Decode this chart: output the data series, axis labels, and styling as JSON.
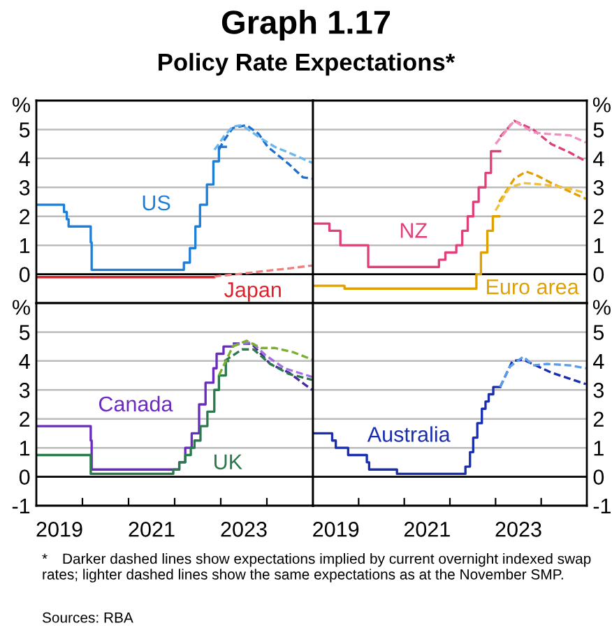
{
  "chart_data": [
    {
      "type": "line",
      "title": "Graph 1.17",
      "subtitle": "Policy Rate Expectations*",
      "ylabel": "%",
      "xlim": [
        2019,
        2025
      ],
      "ylim": [
        -1,
        6
      ],
      "yticks": [
        0,
        1,
        2,
        3,
        4,
        5
      ],
      "grid": "y",
      "tick_labels": "y",
      "ref_lines": [
        {
          "axis": "y",
          "value": 0,
          "color": "#000000"
        }
      ],
      "series": [
        {
          "name": "US",
          "type": "step",
          "color": "#1f7fd6",
          "line_style": "solid",
          "x": [
            2019.0,
            2019.6,
            2019.66,
            2019.7,
            2020.18,
            2020.2,
            2022.2,
            2022.33,
            2022.45,
            2022.55,
            2022.7,
            2022.84,
            2022.96,
            2023.11
          ],
          "values": [
            2.4,
            2.15,
            1.9,
            1.65,
            1.1,
            0.15,
            0.4,
            0.9,
            1.65,
            2.4,
            3.1,
            3.9,
            4.4,
            4.4
          ]
        },
        {
          "type": "line",
          "color": "#1f6fcf",
          "line_style": "dashed",
          "x": [
            2022.96,
            2023.06,
            2023.26,
            2023.56,
            2023.82,
            2024.02,
            2024.48,
            2024.78,
            2024.98
          ],
          "values": [
            4.3,
            4.6,
            5.05,
            5.15,
            4.85,
            4.4,
            3.8,
            3.35,
            3.3
          ]
        },
        {
          "type": "line",
          "color": "#6ab8ee",
          "line_style": "dashed",
          "x": [
            2022.86,
            2022.96,
            2023.06,
            2023.26,
            2023.46,
            2023.82,
            2024.17,
            2024.48,
            2024.98
          ],
          "values": [
            4.3,
            4.5,
            4.75,
            5.1,
            5.15,
            4.75,
            4.4,
            4.2,
            3.85
          ]
        },
        {
          "name": "Japan",
          "type": "step",
          "color": "#e0202a",
          "line_style": "solid",
          "x": [
            2019.0,
            2022.86
          ],
          "values": [
            -0.1,
            -0.1
          ]
        },
        {
          "type": "line",
          "color": "#f08080",
          "line_style": "dashed",
          "x": [
            2022.86,
            2023.36,
            2023.9,
            2024.48,
            2024.98
          ],
          "values": [
            -0.08,
            0.0,
            0.1,
            0.2,
            0.3
          ]
        }
      ]
    },
    {
      "type": "line",
      "ylabel": "%",
      "xlim": [
        2019,
        2025
      ],
      "ylim": [
        -1,
        6
      ],
      "yticks": [
        0,
        1,
        2,
        3,
        4,
        5
      ],
      "grid": "y",
      "tick_labels": "y",
      "ref_lines": [
        {
          "axis": "y",
          "value": 0,
          "color": "#000000"
        }
      ],
      "series": [
        {
          "name": "NZ",
          "type": "step",
          "color": "#e0407a",
          "line_style": "solid",
          "x": [
            2019.0,
            2019.36,
            2019.6,
            2020.21,
            2021.76,
            2021.9,
            2022.14,
            2022.27,
            2022.39,
            2022.51,
            2022.63,
            2022.78,
            2022.9,
            2023.1
          ],
          "values": [
            1.75,
            1.5,
            1.0,
            0.25,
            0.5,
            0.75,
            1.0,
            1.5,
            2.0,
            2.5,
            3.0,
            3.5,
            4.25,
            4.25
          ]
        },
        {
          "type": "line",
          "color": "#e0407a",
          "line_style": "dashed",
          "x": [
            2023.1,
            2023.41,
            2023.82,
            2024.22,
            2024.63,
            2024.98
          ],
          "values": [
            4.75,
            5.3,
            5.0,
            4.5,
            4.2,
            3.9
          ]
        },
        {
          "type": "line",
          "color": "#f090c0",
          "line_style": "dashed",
          "x": [
            2023.0,
            2023.41,
            2023.82,
            2024.13,
            2024.63,
            2024.98
          ],
          "values": [
            4.5,
            5.3,
            4.9,
            4.85,
            4.8,
            4.55
          ]
        },
        {
          "name": "Euro area",
          "type": "step",
          "color": "#e0a000",
          "line_style": "solid",
          "x": [
            2019.0,
            2019.69,
            2022.58,
            2022.68,
            2022.82,
            2022.94,
            2023.08
          ],
          "values": [
            -0.4,
            -0.5,
            0.0,
            0.75,
            1.5,
            2.0,
            2.0
          ]
        },
        {
          "type": "line",
          "color": "#e0a000",
          "line_style": "dashed",
          "x": [
            2023.08,
            2023.41,
            2023.67,
            2023.92,
            2024.22,
            2024.98
          ],
          "values": [
            2.5,
            3.3,
            3.55,
            3.4,
            3.15,
            2.6
          ]
        },
        {
          "type": "line",
          "color": "#f0c040",
          "line_style": "dashed",
          "x": [
            2023.0,
            2023.31,
            2023.61,
            2024.02,
            2024.53,
            2024.98
          ],
          "values": [
            2.2,
            3.0,
            3.15,
            3.1,
            3.0,
            2.8
          ]
        }
      ]
    },
    {
      "type": "line",
      "ylabel": "%",
      "xlim": [
        2019,
        2025
      ],
      "ylim": [
        -1,
        6
      ],
      "yticks": [
        -1,
        0,
        1,
        2,
        3,
        4,
        5
      ],
      "grid": "y",
      "xticks": [
        {
          "value": 2019.5,
          "label": "2019"
        },
        {
          "value": 2020,
          "label": null
        },
        {
          "value": 2021,
          "label": null
        },
        {
          "value": 2021.5,
          "label": "2021"
        },
        {
          "value": 2022,
          "label": null
        },
        {
          "value": 2023,
          "label": null
        },
        {
          "value": 2023.5,
          "label": "2023"
        },
        {
          "value": 2024,
          "label": null
        }
      ],
      "ref_lines": [
        {
          "axis": "y",
          "value": 0,
          "color": "#000000"
        }
      ],
      "series": [
        {
          "name": "Canada",
          "type": "step",
          "color": "#6a2bbf",
          "line_style": "solid",
          "x": [
            2019.0,
            2020.18,
            2020.2,
            2022.1,
            2022.23,
            2022.37,
            2022.53,
            2022.67,
            2022.84,
            2022.91,
            2023.06,
            2023.26
          ],
          "values": [
            1.75,
            1.25,
            0.25,
            0.5,
            1.0,
            1.5,
            2.5,
            3.25,
            3.75,
            4.25,
            4.5,
            4.5
          ]
        },
        {
          "type": "line",
          "color": "#4a2aa0",
          "line_style": "dashed",
          "x": [
            2023.26,
            2023.67,
            2024.07,
            2024.48,
            2024.98
          ],
          "values": [
            4.6,
            4.6,
            3.9,
            3.6,
            3.0
          ]
        },
        {
          "type": "line",
          "color": "#a070e0",
          "line_style": "dashed",
          "x": [
            2023.26,
            2023.67,
            2023.97,
            2024.38,
            2024.98
          ],
          "values": [
            4.55,
            4.65,
            4.2,
            3.75,
            3.45
          ]
        },
        {
          "name": "UK",
          "type": "step",
          "color": "#2b7a4b",
          "line_style": "solid",
          "x": [
            2019.0,
            2020.18,
            2021.97,
            2022.1,
            2022.23,
            2022.35,
            2022.43,
            2022.56,
            2022.71,
            2022.86,
            2022.96,
            2023.11,
            2023.16
          ],
          "values": [
            0.75,
            0.1,
            0.25,
            0.5,
            0.75,
            1.0,
            1.25,
            1.75,
            2.25,
            3.0,
            3.5,
            4.0,
            4.0
          ]
        },
        {
          "type": "line",
          "color": "#2b7a4b",
          "line_style": "dashed",
          "x": [
            2023.08,
            2023.46,
            2023.71,
            2024.07,
            2024.48,
            2024.98
          ],
          "values": [
            4.0,
            4.4,
            4.4,
            3.9,
            3.55,
            3.35
          ]
        },
        {
          "type": "line",
          "color": "#7ab030",
          "line_style": "dashed",
          "x": [
            2022.96,
            2023.26,
            2023.56,
            2023.87,
            2024.17,
            2024.58,
            2024.98
          ],
          "values": [
            3.5,
            4.5,
            4.7,
            4.45,
            4.45,
            4.3,
            4.05
          ]
        }
      ]
    },
    {
      "type": "line",
      "ylabel": "%",
      "xlim": [
        2019,
        2025
      ],
      "ylim": [
        -1,
        6
      ],
      "yticks": [
        -1,
        0,
        1,
        2,
        3,
        4,
        5
      ],
      "grid": "y",
      "xticks": [
        {
          "value": 2019.5,
          "label": "2019"
        },
        {
          "value": 2020,
          "label": null
        },
        {
          "value": 2021,
          "label": null
        },
        {
          "value": 2021.5,
          "label": "2021"
        },
        {
          "value": 2022,
          "label": null
        },
        {
          "value": 2023,
          "label": null
        },
        {
          "value": 2023.5,
          "label": "2023"
        },
        {
          "value": 2024,
          "label": null
        }
      ],
      "ref_lines": [
        {
          "axis": "y",
          "value": 0,
          "color": "#000000"
        }
      ],
      "annotations": [
        "* Darker dashed lines show expectations implied by current overnight indexed swap rates; lighter dashed lines show the same expectations as at the November SMP.",
        "Sources: RBA"
      ],
      "series": [
        {
          "name": "Australia",
          "type": "step",
          "color": "#1a2fb0",
          "line_style": "solid",
          "x": [
            2019.0,
            2019.42,
            2019.5,
            2019.77,
            2020.18,
            2020.23,
            2020.84,
            2022.34,
            2022.44,
            2022.51,
            2022.6,
            2022.7,
            2022.78,
            2022.85,
            2022.95,
            2023.1
          ],
          "values": [
            1.5,
            1.25,
            1.0,
            0.75,
            0.5,
            0.25,
            0.1,
            0.35,
            0.85,
            1.35,
            1.85,
            2.35,
            2.6,
            2.85,
            3.1,
            3.1
          ]
        },
        {
          "type": "line",
          "color": "#1a2fb0",
          "line_style": "dashed",
          "x": [
            2023.1,
            2023.37,
            2023.6,
            2024.22,
            2024.98
          ],
          "values": [
            3.1,
            4.0,
            4.05,
            3.6,
            3.2
          ]
        },
        {
          "type": "line",
          "color": "#5a9ee8",
          "line_style": "dashed",
          "x": [
            2023.1,
            2023.31,
            2023.61,
            2023.82,
            2024.13,
            2024.63,
            2024.98
          ],
          "values": [
            3.1,
            3.8,
            4.15,
            3.85,
            3.9,
            3.85,
            3.75
          ]
        }
      ]
    }
  ]
}
